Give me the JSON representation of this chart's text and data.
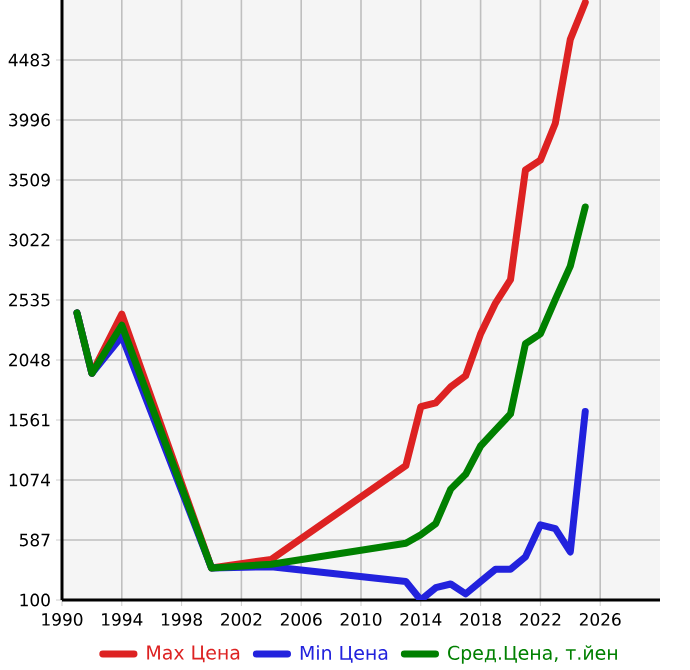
{
  "chart_data": {
    "type": "line",
    "x": [
      1991,
      1992,
      1994,
      2000,
      2004,
      2013,
      2014,
      2015,
      2016,
      2017,
      2018,
      2019,
      2020,
      2021,
      2022,
      2023,
      2024,
      2025
    ],
    "series": [
      {
        "name": "Max Цена",
        "color": "#dd2222",
        "values": [
          2430,
          1940,
          2420,
          360,
          430,
          1190,
          1670,
          1700,
          1830,
          1920,
          2260,
          2510,
          2700,
          3590,
          3670,
          3970,
          4650,
          4950
        ]
      },
      {
        "name": "Min Цена",
        "color": "#2222dd",
        "values": [
          2430,
          1940,
          2240,
          360,
          370,
          250,
          100,
          200,
          230,
          150,
          250,
          350,
          350,
          450,
          710,
          680,
          490,
          1630
        ]
      },
      {
        "name": "Сред.Цена, т.йен",
        "color": "#008000",
        "values": [
          2430,
          1940,
          2330,
          360,
          390,
          560,
          630,
          720,
          1000,
          1120,
          1350,
          1480,
          1610,
          2180,
          2260,
          2540,
          2810,
          3290
        ]
      }
    ],
    "xlim": [
      1990,
      2030
    ],
    "xticks": [
      1990,
      1994,
      1998,
      2002,
      2006,
      2010,
      2014,
      2018,
      2022,
      2026
    ],
    "ylim": [
      100,
      4970
    ],
    "yticks": [
      100,
      587,
      1074,
      1561,
      2048,
      2535,
      3022,
      3509,
      3996,
      4483
    ],
    "grid": true,
    "legend": "bottom",
    "marker": "none",
    "line_style": "solid"
  }
}
